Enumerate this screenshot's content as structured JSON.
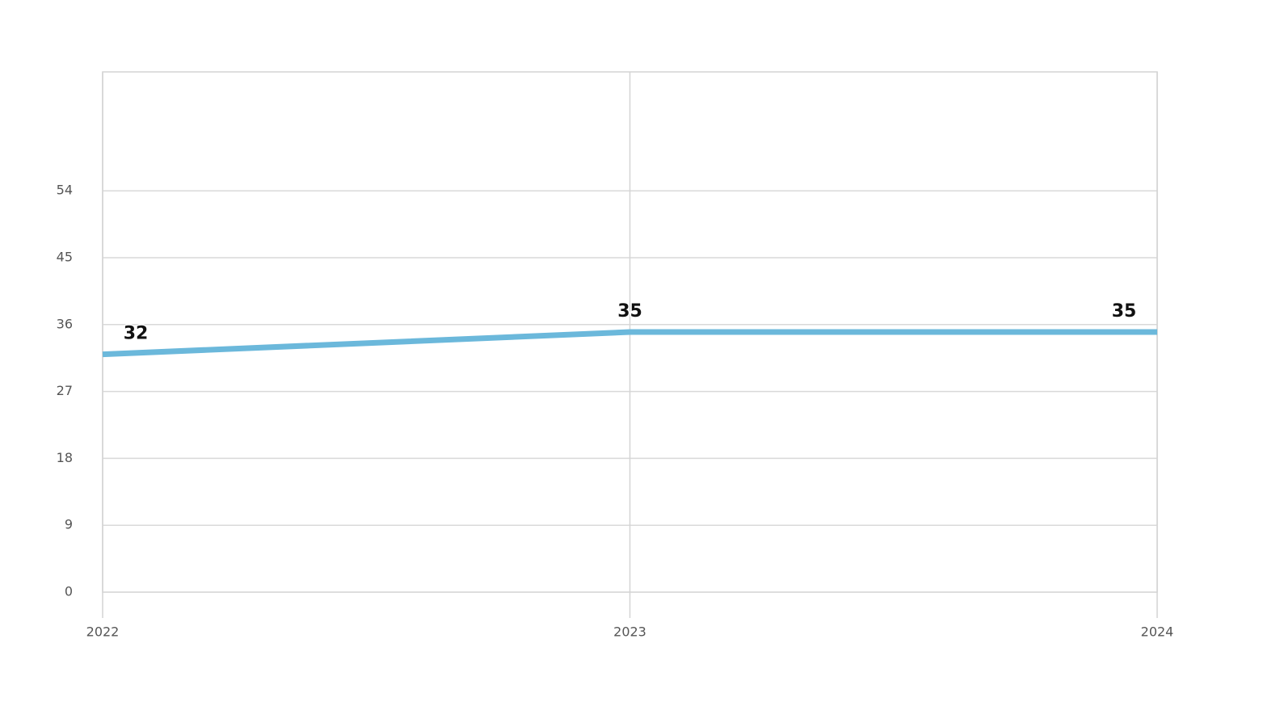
{
  "chart_data": {
    "type": "line",
    "categories": [
      "2022",
      "2023",
      "2024"
    ],
    "series": [
      {
        "name": null,
        "color": "#6bb8db",
        "values": [
          32,
          35,
          35
        ]
      }
    ],
    "ylim": [
      0,
      70
    ],
    "yticks": [
      0,
      9,
      18,
      27,
      36,
      45,
      54
    ],
    "grid": true
  }
}
